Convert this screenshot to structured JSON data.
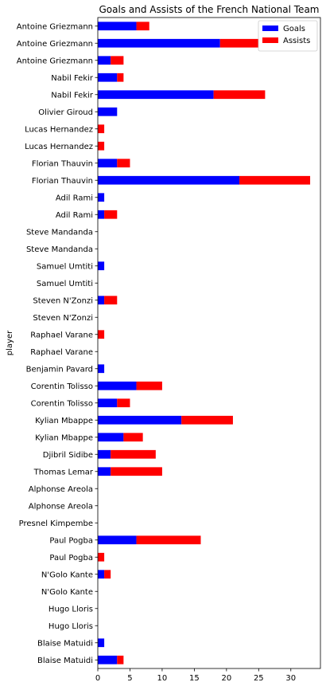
{
  "chart_data": {
    "type": "bar",
    "orientation": "horizontal",
    "stacked": true,
    "title": "Goals and Assists of the French National Team",
    "ylabel": "player",
    "xlabel": "",
    "xlim": [
      0,
      34.6
    ],
    "xticks": [
      0,
      5,
      10,
      15,
      20,
      25,
      30
    ],
    "grid": false,
    "legend_position": "top-right",
    "categories": [
      "Blaise Matuidi",
      "Blaise Matuidi",
      "Hugo Lloris",
      "Hugo Lloris",
      "N'Golo Kante",
      "N'Golo Kante",
      "Paul Pogba",
      "Paul Pogba",
      "Presnel Kimpembe",
      "Alphonse Areola",
      "Alphonse Areola",
      "Thomas Lemar",
      "Djibril Sidibe",
      "Kylian Mbappe",
      "Kylian Mbappe",
      "Corentin Tolisso",
      "Corentin Tolisso",
      "Benjamin Pavard",
      "Raphael Varane",
      "Raphael Varane",
      "Steven N'Zonzi",
      "Steven N'Zonzi",
      "Samuel Umtiti",
      "Samuel Umtiti",
      "Steve Mandanda",
      "Steve Mandanda",
      "Adil Rami",
      "Adil Rami",
      "Florian Thauvin",
      "Florian Thauvin",
      "Lucas Hernandez",
      "Lucas Hernandez",
      "Olivier Giroud",
      "Nabil Fekir",
      "Nabil Fekir",
      "Antoine Griezmann",
      "Antoine Griezmann",
      "Antoine Griezmann"
    ],
    "series": [
      {
        "name": "Goals",
        "color": "#0000ff",
        "values": [
          3,
          1,
          0,
          0,
          0,
          1,
          0,
          6,
          0,
          0,
          0,
          2,
          2,
          4,
          13,
          3,
          6,
          1,
          0,
          0,
          0,
          1,
          0,
          1,
          0,
          0,
          1,
          1,
          22,
          3,
          0,
          0,
          3,
          18,
          3,
          2,
          19,
          6
        ]
      },
      {
        "name": "Assists",
        "color": "#ff0000",
        "values": [
          1,
          0,
          0,
          0,
          0,
          1,
          1,
          10,
          0,
          0,
          0,
          8,
          7,
          3,
          8,
          2,
          4,
          0,
          0,
          1,
          0,
          2,
          0,
          0,
          0,
          0,
          2,
          0,
          11,
          2,
          1,
          1,
          0,
          8,
          1,
          2,
          9,
          2
        ]
      }
    ]
  }
}
